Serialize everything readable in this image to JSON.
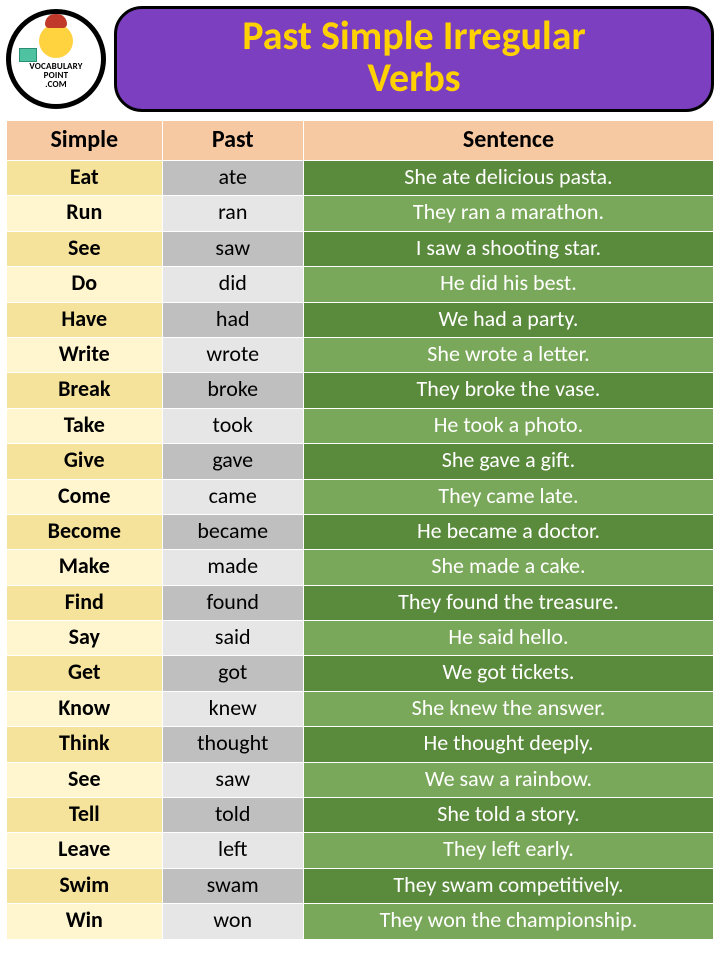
{
  "logo": {
    "line1": "VOCABULARY",
    "line2": "POINT",
    "line3": ".COM"
  },
  "title": {
    "line1": "Past Simple Irregular",
    "line2": "Verbs"
  },
  "colors": {
    "header_bg": "#7b3fbf",
    "header_text": "#ffd100",
    "header_border": "#000000",
    "th_bg": "#f7c9a3",
    "col1_odd": "#f6e39b",
    "col1_even": "#fff6cf",
    "col2_odd": "#bfbfbf",
    "col2_even": "#e6e6e6",
    "col3_odd": "#5a8a3b",
    "col3_even": "#7aa85a",
    "sentence_text": "#ffffff",
    "page_bg": "#ffffff",
    "cell_border": "#ffffff"
  },
  "columns": [
    "Simple",
    "Past",
    "Sentence"
  ],
  "column_widths_pct": [
    22,
    20,
    58
  ],
  "font": {
    "title_pt": 40,
    "th_pt": 24,
    "td_pt": 22,
    "family": "Calibri"
  },
  "rows": [
    {
      "simple": "Eat",
      "past": "ate",
      "sentence": "She ate delicious pasta."
    },
    {
      "simple": "Run",
      "past": "ran",
      "sentence": "They ran a marathon."
    },
    {
      "simple": "See",
      "past": "saw",
      "sentence": "I saw a shooting star."
    },
    {
      "simple": "Do",
      "past": "did",
      "sentence": "He did his best."
    },
    {
      "simple": "Have",
      "past": "had",
      "sentence": "We had a party."
    },
    {
      "simple": "Write",
      "past": "wrote",
      "sentence": "She wrote a letter."
    },
    {
      "simple": "Break",
      "past": "broke",
      "sentence": "They broke the vase."
    },
    {
      "simple": "Take",
      "past": "took",
      "sentence": "He took a photo."
    },
    {
      "simple": "Give",
      "past": "gave",
      "sentence": "She gave a gift."
    },
    {
      "simple": "Come",
      "past": "came",
      "sentence": "They came late."
    },
    {
      "simple": "Become",
      "past": "became",
      "sentence": "He became a doctor."
    },
    {
      "simple": "Make",
      "past": "made",
      "sentence": "She made a cake."
    },
    {
      "simple": "Find",
      "past": "found",
      "sentence": "They found the treasure."
    },
    {
      "simple": "Say",
      "past": "said",
      "sentence": "He said hello."
    },
    {
      "simple": "Get",
      "past": "got",
      "sentence": "We got tickets."
    },
    {
      "simple": "Know",
      "past": "knew",
      "sentence": "She knew the answer."
    },
    {
      "simple": "Think",
      "past": "thought",
      "sentence": "He thought deeply."
    },
    {
      "simple": "See",
      "past": "saw",
      "sentence": "We saw a rainbow."
    },
    {
      "simple": "Tell",
      "past": "told",
      "sentence": "She told a story."
    },
    {
      "simple": "Leave",
      "past": "left",
      "sentence": "They left early."
    },
    {
      "simple": "Swim",
      "past": "swam",
      "sentence": "They swam competitively."
    },
    {
      "simple": "Win",
      "past": "won",
      "sentence": "They won the championship."
    }
  ]
}
